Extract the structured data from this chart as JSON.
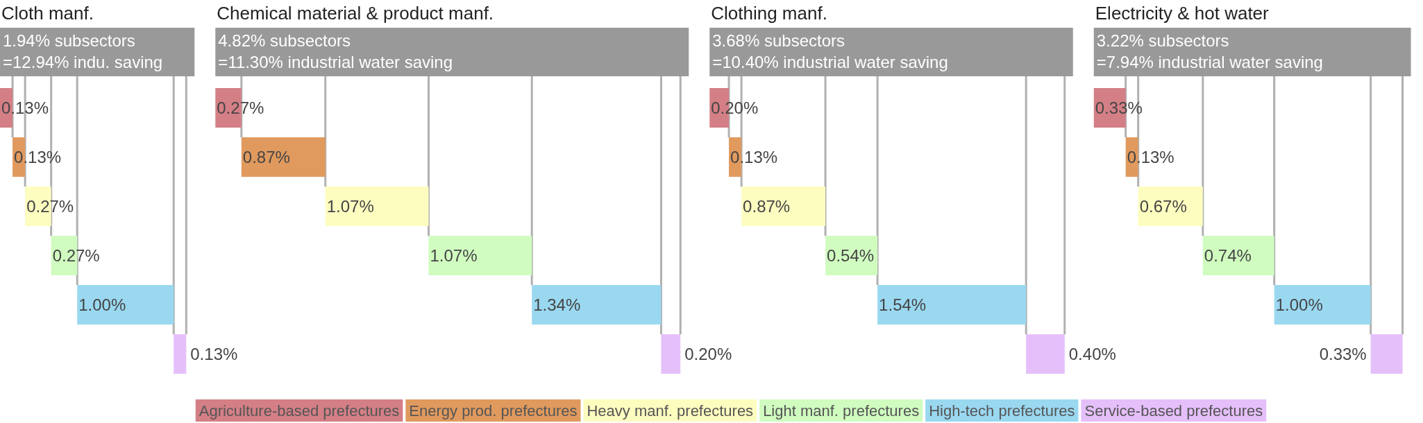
{
  "chart_data": [
    {
      "type": "other",
      "title": "Cloth manf.",
      "annotations": [
        "1.94% subsectors",
        "=12.94% indu. saving"
      ],
      "categories": [
        null,
        null,
        null,
        null,
        null,
        null
      ],
      "values": [
        0.13,
        0.13,
        0.27,
        0.27,
        1.0,
        0.13
      ],
      "value_labels": [
        "0.13%",
        "0.13%",
        "0.27%",
        "0.27%",
        "1.00%",
        "0.13%"
      ],
      "colors": [
        "#d47f86",
        "#e09a5e",
        "#fdfdc0",
        "#d0fcc0",
        "#9ad8f0",
        "#e5bffa"
      ]
    },
    {
      "type": "other",
      "title": "Chemical material & product manf.",
      "annotations": [
        "4.82% subsectors",
        "=11.30% industrial water saving"
      ],
      "categories": [
        null,
        null,
        null,
        null,
        null,
        null
      ],
      "values": [
        0.27,
        0.87,
        1.07,
        1.07,
        1.34,
        0.2
      ],
      "value_labels": [
        "0.27%",
        "0.87%",
        "1.07%",
        "1.07%",
        "1.34%",
        "0.20%"
      ],
      "colors": [
        "#d47f86",
        "#e09a5e",
        "#fdfdc0",
        "#d0fcc0",
        "#9ad8f0",
        "#e5bffa"
      ]
    },
    {
      "type": "other",
      "title": "Clothing manf.",
      "annotations": [
        "3.68% subsectors",
        "=10.40% industrial water saving"
      ],
      "categories": [
        null,
        null,
        null,
        null,
        null,
        null
      ],
      "values": [
        0.2,
        0.13,
        0.87,
        0.54,
        1.54,
        0.4
      ],
      "value_labels": [
        "0.20%",
        "0.13%",
        "0.87%",
        "0.54%",
        "1.54%",
        "0.40%"
      ],
      "colors": [
        "#d47f86",
        "#e09a5e",
        "#fdfdc0",
        "#d0fcc0",
        "#9ad8f0",
        "#e5bffa"
      ]
    },
    {
      "type": "other",
      "title": "Electricity & hot water",
      "annotations": [
        "3.22% subsectors",
        "=7.94% industrial water saving"
      ],
      "categories": [
        null,
        null,
        null,
        null,
        null,
        null
      ],
      "values": [
        0.33,
        0.13,
        0.67,
        0.74,
        1.0,
        0.33
      ],
      "value_labels": [
        "0.33%",
        "0.13%",
        "0.67%",
        "0.74%",
        "1.00%",
        "0.33%"
      ],
      "colors": [
        "#d47f86",
        "#e09a5e",
        "#fdfdc0",
        "#d0fcc0",
        "#9ad8f0",
        "#e5bffa"
      ]
    },
    {
      "type": "other",
      "categories": [
        "Agriculture-based prefectures",
        "Energy prod. prefectures",
        "Heavy manf. prefectures",
        "Light manf. prefectures",
        "High-tech prefectures",
        "Service-based prefectures"
      ],
      "colors": [
        "#d47f86",
        "#e09a5e",
        "#fdfdc0",
        "#d0fcc0",
        "#9ad8f0",
        "#e5bffa"
      ]
    }
  ]
}
